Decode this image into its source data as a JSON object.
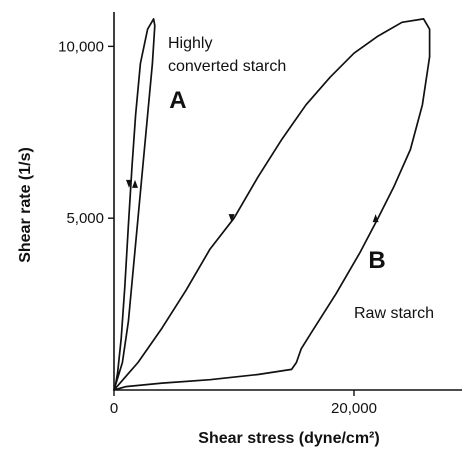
{
  "chart_data": {
    "type": "line",
    "xlabel": "Shear stress (dyne/cm²)",
    "ylabel": "Shear rate (1/s)",
    "xlim": [
      0,
      29000
    ],
    "ylim": [
      0,
      11000
    ],
    "x_ticks": [
      {
        "value": 0,
        "label": "0"
      },
      {
        "value": 20000,
        "label": "20,000"
      }
    ],
    "y_ticks": [
      {
        "value": 5000,
        "label": "5,000"
      },
      {
        "value": 10000,
        "label": "10,000"
      }
    ],
    "grid": false,
    "legend": "none",
    "series": [
      {
        "name": "Highly converted starch",
        "label": "A",
        "color": "#111111",
        "points": [
          [
            0,
            0
          ],
          [
            100,
            100
          ],
          [
            300,
            500
          ],
          [
            600,
            1500
          ],
          [
            900,
            3000
          ],
          [
            1200,
            4800
          ],
          [
            1500,
            6500
          ],
          [
            1800,
            8000
          ],
          [
            2200,
            9500
          ],
          [
            2800,
            10500
          ],
          [
            3300,
            10800
          ],
          [
            3400,
            10600
          ],
          [
            3200,
            9500
          ],
          [
            2800,
            8000
          ],
          [
            2400,
            6500
          ],
          [
            2000,
            5000
          ],
          [
            1600,
            3500
          ],
          [
            1200,
            2000
          ],
          [
            700,
            800
          ],
          [
            0,
            0
          ]
        ]
      },
      {
        "name": "Raw starch",
        "label": "B",
        "color": "#111111",
        "points": [
          [
            0,
            0
          ],
          [
            2000,
            800
          ],
          [
            4000,
            1800
          ],
          [
            6000,
            2900
          ],
          [
            8000,
            4100
          ],
          [
            10000,
            5000
          ],
          [
            12000,
            6200
          ],
          [
            14000,
            7300
          ],
          [
            16000,
            8300
          ],
          [
            18000,
            9100
          ],
          [
            20000,
            9800
          ],
          [
            22000,
            10300
          ],
          [
            24000,
            10700
          ],
          [
            25800,
            10800
          ],
          [
            26300,
            10500
          ],
          [
            26300,
            9700
          ],
          [
            25700,
            8300
          ],
          [
            24700,
            7000
          ],
          [
            23300,
            5900
          ],
          [
            22000,
            5000
          ],
          [
            20500,
            4000
          ],
          [
            18500,
            2800
          ],
          [
            16500,
            1700
          ],
          [
            15600,
            1200
          ],
          [
            15200,
            800
          ],
          [
            14800,
            600
          ],
          [
            12000,
            450
          ],
          [
            8000,
            300
          ],
          [
            4000,
            200
          ],
          [
            1000,
            100
          ],
          [
            0,
            0
          ]
        ]
      }
    ],
    "direction_arrows": [
      {
        "series": "Highly converted starch",
        "x": 1750,
        "y": 6000,
        "direction": "up"
      },
      {
        "series": "Highly converted starch",
        "x": 1250,
        "y": 6000,
        "direction": "down"
      },
      {
        "series": "Raw starch",
        "x": 9800,
        "y": 5000,
        "direction": "down"
      },
      {
        "series": "Raw starch",
        "x": 21800,
        "y": 5000,
        "direction": "up"
      }
    ],
    "annotations": [
      {
        "id": "A",
        "text": "A",
        "x": 4600,
        "y": 8200,
        "style": "letter"
      },
      {
        "id": "B",
        "text": "B",
        "x": 21200,
        "y": 3550,
        "style": "letter"
      },
      {
        "id": "highly-1",
        "text": "Highly",
        "x": 4500,
        "y": 9950,
        "style": "annot"
      },
      {
        "id": "highly-2",
        "text": "converted starch",
        "x": 4500,
        "y": 9280,
        "style": "annot"
      },
      {
        "id": "raw",
        "text": "Raw starch",
        "x": 20000,
        "y": 2100,
        "style": "annot"
      }
    ]
  }
}
